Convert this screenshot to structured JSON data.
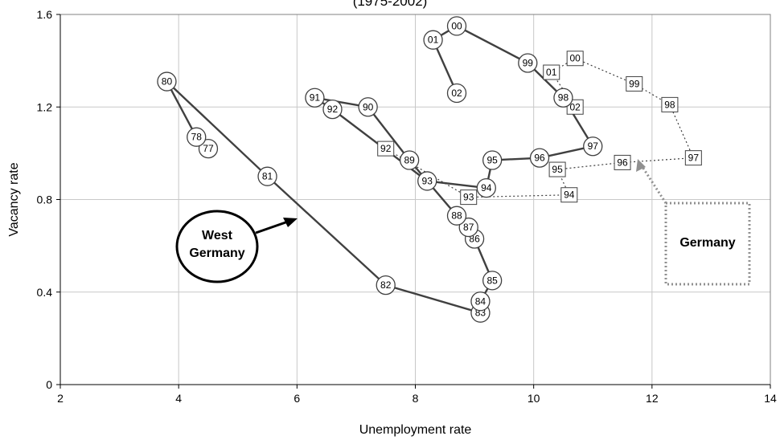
{
  "chart_data": {
    "type": "scatter",
    "title": "(1975-2002)",
    "xlabel": "Unemployment rate",
    "ylabel": "Vacancy rate",
    "xlim": [
      2,
      14
    ],
    "ylim": [
      0,
      1.6
    ],
    "xticks": [
      "2",
      "4",
      "6",
      "8",
      "10",
      "12",
      "14"
    ],
    "yticks": [
      "0",
      "0.4",
      "0.8",
      "1.2",
      "1.6"
    ],
    "grid": true,
    "series": [
      {
        "name": "West Germany",
        "marker": "circle",
        "line": "solid",
        "color": "#404040",
        "points": [
          {
            "label": "77",
            "x": 4.5,
            "y": 1.02
          },
          {
            "label": "78",
            "x": 4.3,
            "y": 1.07
          },
          {
            "label": "80",
            "x": 3.8,
            "y": 1.31
          },
          {
            "label": "81",
            "x": 5.5,
            "y": 0.9
          },
          {
            "label": "82",
            "x": 7.5,
            "y": 0.43
          },
          {
            "label": "83",
            "x": 9.1,
            "y": 0.31
          },
          {
            "label": "84",
            "x": 9.1,
            "y": 0.36
          },
          {
            "label": "85",
            "x": 9.3,
            "y": 0.45
          },
          {
            "label": "86",
            "x": 9.0,
            "y": 0.63
          },
          {
            "label": "87",
            "x": 8.9,
            "y": 0.68
          },
          {
            "label": "88",
            "x": 8.7,
            "y": 0.73
          },
          {
            "label": "89",
            "x": 7.9,
            "y": 0.97
          },
          {
            "label": "90",
            "x": 7.2,
            "y": 1.2
          },
          {
            "label": "91",
            "x": 6.3,
            "y": 1.24
          },
          {
            "label": "92",
            "x": 6.6,
            "y": 1.19
          },
          {
            "label": "93",
            "x": 8.2,
            "y": 0.88
          },
          {
            "label": "94",
            "x": 9.2,
            "y": 0.85
          },
          {
            "label": "95",
            "x": 9.3,
            "y": 0.97
          },
          {
            "label": "96",
            "x": 10.1,
            "y": 0.98
          },
          {
            "label": "97",
            "x": 11.0,
            "y": 1.03
          },
          {
            "label": "98",
            "x": 10.5,
            "y": 1.24
          },
          {
            "label": "99",
            "x": 9.9,
            "y": 1.39
          },
          {
            "label": "00",
            "x": 8.7,
            "y": 1.55
          },
          {
            "label": "01",
            "x": 8.3,
            "y": 1.49
          },
          {
            "label": "02",
            "x": 8.7,
            "y": 1.26
          }
        ]
      },
      {
        "name": "Germany",
        "marker": "square",
        "line": "dotted",
        "color": "#404040",
        "points": [
          {
            "label": "92",
            "x": 7.5,
            "y": 1.02
          },
          {
            "label": "93",
            "x": 8.9,
            "y": 0.81
          },
          {
            "label": "94",
            "x": 10.6,
            "y": 0.82
          },
          {
            "label": "95",
            "x": 10.4,
            "y": 0.93
          },
          {
            "label": "96",
            "x": 11.5,
            "y": 0.96
          },
          {
            "label": "97",
            "x": 12.7,
            "y": 0.98
          },
          {
            "label": "98",
            "x": 12.3,
            "y": 1.21
          },
          {
            "label": "99",
            "x": 11.7,
            "y": 1.3
          },
          {
            "label": "00",
            "x": 10.7,
            "y": 1.41
          },
          {
            "label": "01",
            "x": 10.3,
            "y": 1.35
          },
          {
            "label": "02",
            "x": 10.7,
            "y": 1.2
          }
        ]
      }
    ],
    "annotations": {
      "west_germany": {
        "text_line1": "West",
        "text_line2": "Germany"
      },
      "germany": {
        "text": "Germany"
      }
    }
  }
}
